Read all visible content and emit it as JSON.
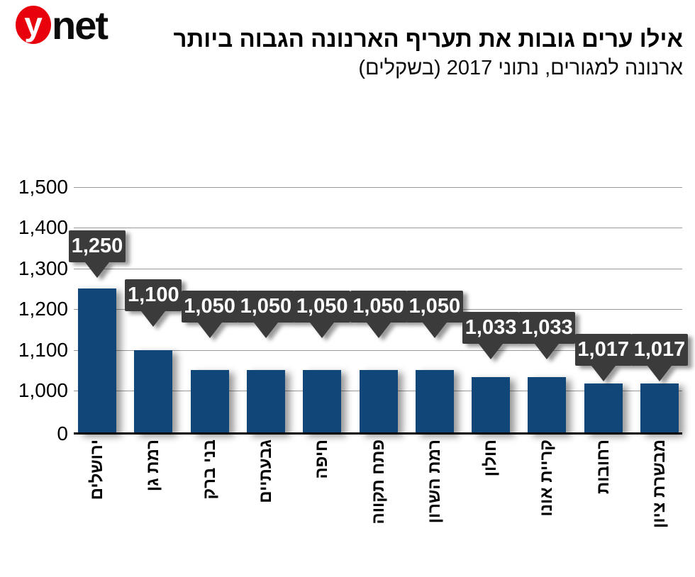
{
  "logo": {
    "mark": "y",
    "text": "net",
    "mark_color": "#e8000d"
  },
  "chart_data": {
    "type": "bar",
    "title": "אילו ערים גובות את תעריף הארנונה הגבוה ביותר",
    "subtitle": "ארנונה למגורים, נתוני 2017 (בשקלים)",
    "categories": [
      "ירושלים",
      "רמת גן",
      "בני ברק",
      "גבעתיים",
      "חיפה",
      "פתח תקווה",
      "רמת השרון",
      "חולון",
      "קריית אונו",
      "רחובות",
      "מבשרת ציון"
    ],
    "values": [
      1250,
      1100,
      1050,
      1050,
      1050,
      1050,
      1050,
      1033,
      1033,
      1017,
      1017
    ],
    "value_labels": [
      "1,250",
      "1,100",
      "1,050",
      "1,050",
      "1,050",
      "1,050",
      "1,050",
      "1,033",
      "1,033",
      "1,017",
      "1,017"
    ],
    "y_ticks": [
      {
        "value": 1500,
        "label": "1,500"
      },
      {
        "value": 1400,
        "label": "1,400"
      },
      {
        "value": 1300,
        "label": "1,300"
      },
      {
        "value": 1200,
        "label": "1,200"
      },
      {
        "value": 1100,
        "label": "1,100"
      },
      {
        "value": 1000,
        "label": "1,000"
      },
      {
        "value": 0,
        "label": "0"
      }
    ],
    "ylim": [
      0,
      1500
    ],
    "axis_break": {
      "between": [
        0,
        1000
      ]
    },
    "grid": "horizontal",
    "legend": null,
    "xlabel": "",
    "ylabel": "",
    "bar_color": "#114679",
    "callout_color": "#3b3b3b",
    "gridline_color": "#999999"
  }
}
